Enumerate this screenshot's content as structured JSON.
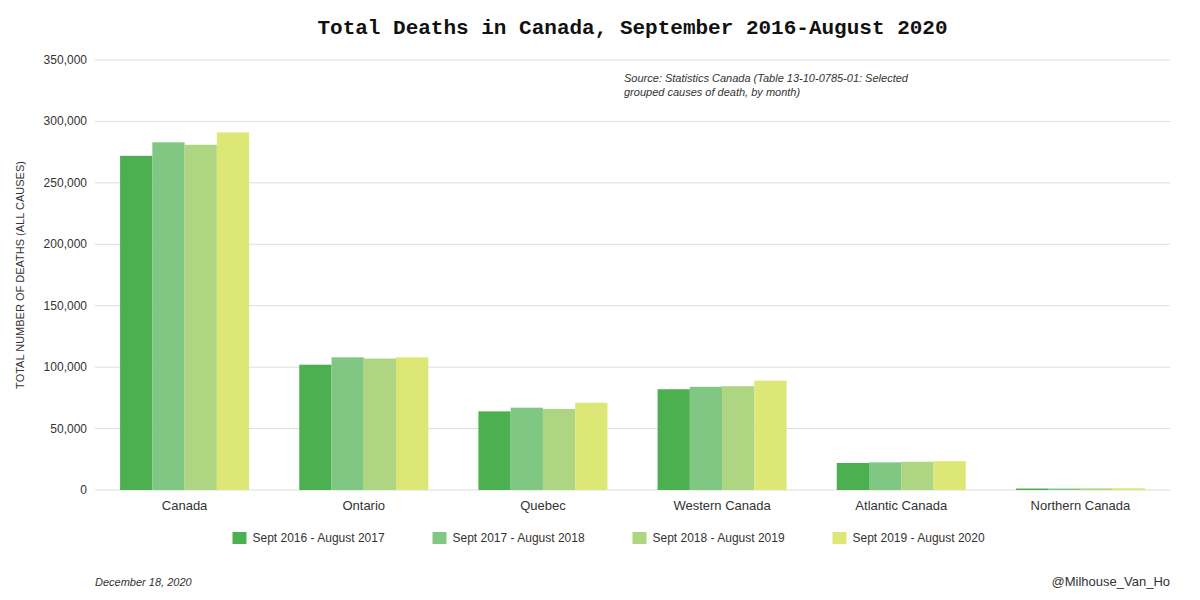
{
  "chart_data": {
    "type": "bar",
    "title": "Total Deaths in Canada, September 2016-August 2020",
    "y_label": "TOTAL NUMBER OF DEATHS (ALL CAUSES)",
    "annotations": [
      "Source: Statistics Canada (Table 13-10-0785-01: Selected\ngrouped causes of death, by month)",
      "December 18, 2020",
      "@Milhouse_Van_Ho"
    ],
    "categories": [
      "Canada",
      "Ontario",
      "Quebec",
      "Western Canada",
      "Atlantic Canada",
      "Northern Canada"
    ],
    "series": [
      {
        "name": "Sept 2016 - August 2017",
        "color": "#4caf50",
        "values": [
          272000,
          102000,
          64000,
          82000,
          22000,
          1200
        ]
      },
      {
        "name": "Sept 2017 - August 2018",
        "color": "#81c784",
        "values": [
          283000,
          108000,
          67000,
          84000,
          22500,
          1200
        ]
      },
      {
        "name": "Sept 2018 - August 2019",
        "color": "#aed581",
        "values": [
          281000,
          107000,
          66000,
          84500,
          23000,
          1300
        ]
      },
      {
        "name": "Sept 2019 - August 2020",
        "color": "#dce775",
        "values": [
          291000,
          108000,
          71000,
          89000,
          23500,
          1400
        ]
      }
    ],
    "ylim": [
      0,
      350000
    ],
    "yticks": [
      0,
      {
        "value": 50000,
        "label": "50,000"
      },
      {
        "value": 100000,
        "label": "100,000"
      },
      {
        "value": 150000,
        "label": "150,000"
      },
      {
        "value": 200000,
        "label": "200,000"
      },
      {
        "value": 250000,
        "label": "250,000"
      },
      {
        "value": 300000,
        "label": "300,000"
      },
      {
        "value": 350000,
        "label": "350,000"
      }
    ],
    "grid": true,
    "legend": "bottom"
  }
}
